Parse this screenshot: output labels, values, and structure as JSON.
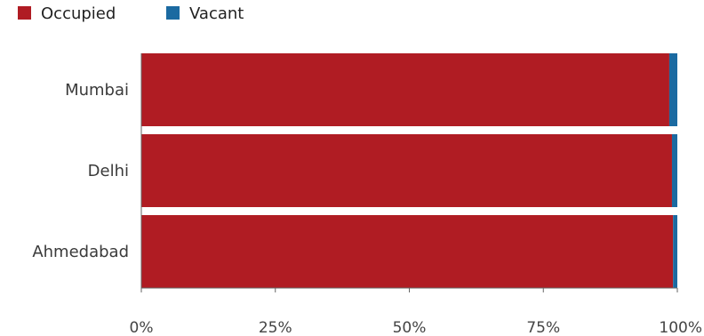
{
  "chart_data": {
    "type": "bar",
    "orientation": "horizontal",
    "stacked": true,
    "percent_stacked": true,
    "categories": [
      "Mumbai",
      "Delhi",
      "Ahmedabad"
    ],
    "series": [
      {
        "name": "Occupied",
        "color": "#b01c23",
        "values": [
          98.5,
          99.0,
          99.2
        ]
      },
      {
        "name": "Vacant",
        "color": "#1b6aa1",
        "values": [
          1.5,
          1.0,
          0.8
        ]
      }
    ],
    "x_ticks": [
      "0%",
      "25%",
      "50%",
      "75%",
      "100%"
    ],
    "xlim": [
      0,
      100
    ],
    "legend_position": "top-left",
    "grid": false
  }
}
